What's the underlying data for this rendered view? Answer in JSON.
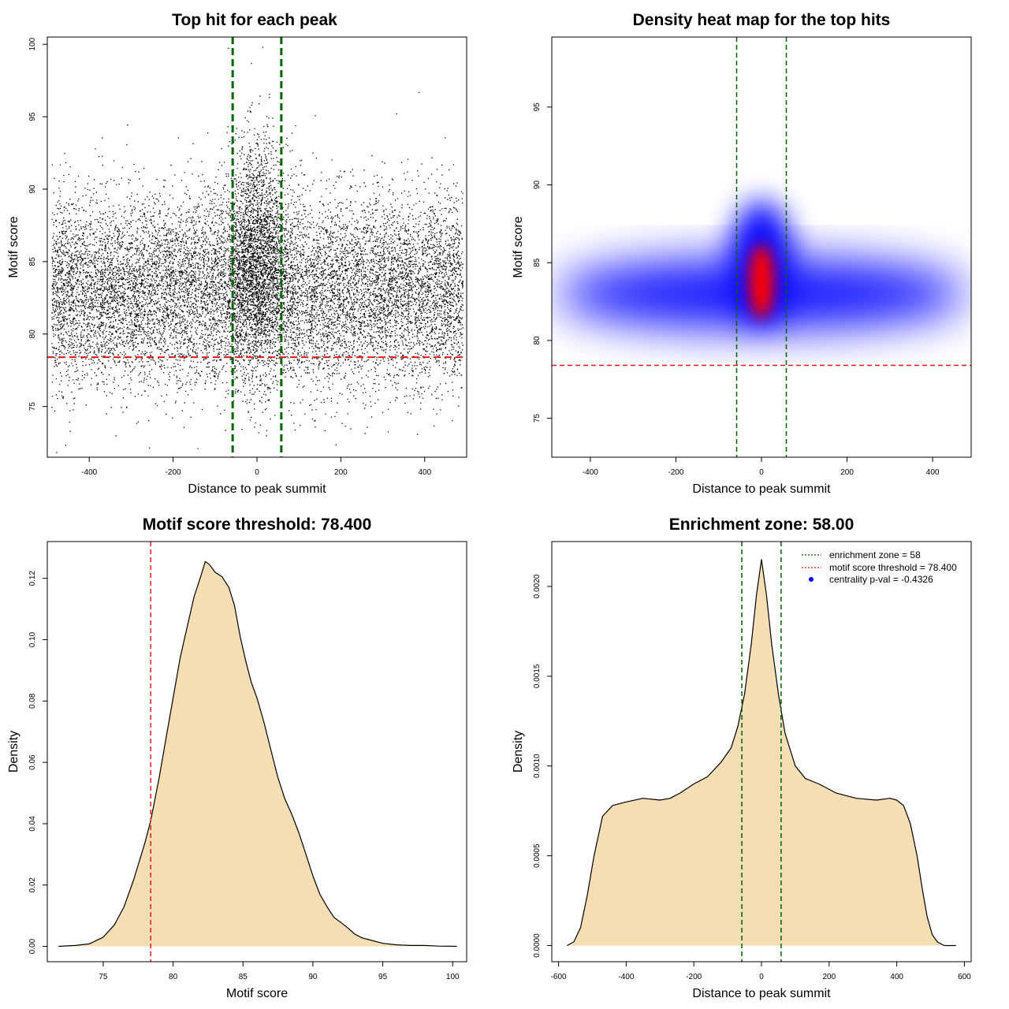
{
  "chart_data": [
    {
      "type": "scatter",
      "title": "Top hit for each peak",
      "xlabel": "Distance to peak summit",
      "ylabel": "Motif score",
      "xlim": [
        -500,
        500
      ],
      "ylim": [
        71.5,
        100.5
      ],
      "xticks": [
        "-400",
        "-200",
        "0",
        "200",
        "400"
      ],
      "yticks": [
        "75",
        "80",
        "85",
        "90",
        "95",
        "100"
      ],
      "vlines": [
        -58,
        58
      ],
      "hline": 78.4,
      "point_cloud": {
        "x_range": [
          -490,
          490
        ],
        "central_peak_x": 0,
        "central_peak_width": 35,
        "background_score_mean": 83,
        "background_score_sd": 3.2,
        "central_score_mean": 85.5,
        "central_score_sd": 4
      },
      "colors": {
        "points": "#000000",
        "vlines": "#006400",
        "hline": "#e31a1c"
      },
      "grid": false,
      "legend": "none"
    },
    {
      "type": "heatmap",
      "title": "Density heat map for the top hits",
      "xlabel": "Distance to peak summit",
      "ylabel": "Motif score",
      "xlim": [
        -490,
        490
      ],
      "ylim": [
        72.5,
        99.5
      ],
      "xticks": [
        "-400",
        "-200",
        "0",
        "200",
        "400"
      ],
      "yticks": [
        "75",
        "80",
        "85",
        "90",
        "95"
      ],
      "vlines": [
        -58,
        58
      ],
      "hline": 78.4,
      "density_bands": [
        {
          "x": 0,
          "y": 83.8,
          "sx": 30,
          "sy": 2.4,
          "color": "#ff0000"
        },
        {
          "x": 0,
          "y": 85,
          "sx": 75,
          "sy": 4,
          "color": "#0000ff"
        },
        {
          "x": 0,
          "y": 83,
          "sx": 480,
          "sy": 2.2,
          "color": "#0000ff"
        }
      ],
      "colors": {
        "low": "#ffffff",
        "mid": "#0000ff",
        "high": "#ff0000",
        "vlines": "#006400",
        "hline": "#e31a1c"
      },
      "grid": false,
      "legend": "none"
    },
    {
      "type": "area",
      "title": "Motif score threshold: 78.400",
      "xlabel": "Motif score",
      "ylabel": "Density",
      "xlim": [
        71,
        101
      ],
      "ylim": [
        -0.005,
        0.132
      ],
      "xticks": [
        "75",
        "80",
        "85",
        "90",
        "95",
        "100"
      ],
      "yticks": [
        "0.00",
        "0.02",
        "0.04",
        "0.06",
        "0.08",
        "0.10",
        "0.12"
      ],
      "vline": 78.4,
      "x": [
        71.8,
        73,
        74,
        75,
        75.8,
        76.5,
        77.2,
        78,
        78.4,
        79,
        79.5,
        80,
        80.5,
        81,
        81.5,
        82,
        82.3,
        82.6,
        83,
        83.5,
        84,
        84.4,
        84.8,
        85.2,
        85.6,
        86,
        86.5,
        87,
        87.5,
        88,
        88.5,
        89,
        89.5,
        90,
        90.5,
        91,
        91.5,
        92,
        92.5,
        93,
        93.5,
        94,
        95,
        96,
        97,
        98,
        99,
        100.3
      ],
      "y": [
        0,
        0.0003,
        0.0008,
        0.003,
        0.007,
        0.013,
        0.022,
        0.034,
        0.041,
        0.055,
        0.068,
        0.081,
        0.094,
        0.104,
        0.114,
        0.121,
        0.1255,
        0.1245,
        0.122,
        0.1205,
        0.117,
        0.111,
        0.101,
        0.093,
        0.086,
        0.081,
        0.073,
        0.064,
        0.055,
        0.048,
        0.043,
        0.037,
        0.03,
        0.023,
        0.017,
        0.013,
        0.0095,
        0.0078,
        0.006,
        0.004,
        0.0028,
        0.0022,
        0.001,
        0.0005,
        0.0003,
        0.0003,
        0.0001,
        0
      ],
      "colors": {
        "fill": "#f5deb3",
        "line": "#000000",
        "vline": "#e31a1c"
      },
      "grid": false,
      "legend": "none"
    },
    {
      "type": "area",
      "title": "Enrichment zone: 58.00",
      "xlabel": "Distance to peak summit",
      "ylabel": "Density",
      "xlim": [
        -620,
        620
      ],
      "ylim": [
        -9e-05,
        0.00225
      ],
      "xticks": [
        "-600",
        "-400",
        "-200",
        "0",
        "200",
        "400",
        "600"
      ],
      "yticks": [
        "0.0000",
        "0.0005",
        "0.0010",
        "0.0015",
        "0.0020"
      ],
      "vlines": [
        -58,
        58
      ],
      "x": [
        -575,
        -555,
        -535,
        -515,
        -495,
        -470,
        -440,
        -400,
        -350,
        -300,
        -270,
        -240,
        -200,
        -160,
        -120,
        -90,
        -70,
        -50,
        -30,
        -15,
        0,
        15,
        30,
        50,
        70,
        100,
        130,
        170,
        220,
        280,
        340,
        380,
        400,
        420,
        440,
        460,
        475,
        490,
        505,
        520,
        540,
        555,
        575
      ],
      "y": [
        0,
        2e-05,
        0.0001,
        0.00028,
        0.0005,
        0.00072,
        0.00078,
        0.0008,
        0.00082,
        0.00081,
        0.00082,
        0.00085,
        0.0009,
        0.00094,
        0.00102,
        0.0011,
        0.00122,
        0.0014,
        0.00168,
        0.00195,
        0.00215,
        0.00195,
        0.00168,
        0.0014,
        0.00118,
        0.001,
        0.00093,
        0.0009,
        0.00085,
        0.00082,
        0.00081,
        0.00082,
        0.00081,
        0.00078,
        0.00068,
        0.0005,
        0.00032,
        0.00016,
        6e-05,
        2e-05,
        0,
        0,
        0
      ],
      "colors": {
        "fill": "#f5deb3",
        "line": "#000000",
        "vlines": "#006400"
      },
      "legend_entries": [
        {
          "label": "enrichment zone = 58",
          "style": "dotted",
          "color": "#006400"
        },
        {
          "label": "motif score threshold = 78.400",
          "style": "dotted",
          "color": "#e31a1c"
        },
        {
          "label": "centrality p-val = -0.4326",
          "style": "point",
          "color": "#0000ff"
        }
      ],
      "legend": "top-right",
      "grid": false
    }
  ]
}
